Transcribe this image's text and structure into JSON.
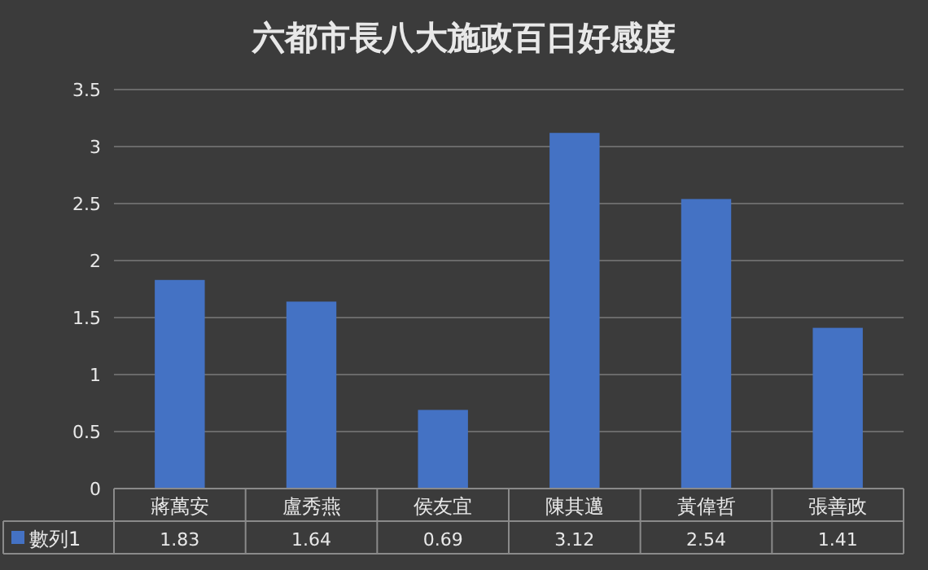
{
  "chart_data": {
    "type": "bar",
    "title": "六都市長八大施政百日好感度",
    "categories": [
      "蔣萬安",
      "盧秀燕",
      "侯友宜",
      "陳其邁",
      "黃偉哲",
      "張善政"
    ],
    "series": [
      {
        "name": "數列1",
        "color": "#4472c4",
        "values": [
          1.83,
          1.64,
          0.69,
          3.12,
          2.54,
          1.41
        ]
      }
    ],
    "ylim": [
      0,
      3.5
    ],
    "yticks": [
      0,
      0.5,
      1,
      1.5,
      2,
      2.5,
      3,
      3.5
    ],
    "grid": "y",
    "legend": "bottom",
    "data_labels": true
  }
}
